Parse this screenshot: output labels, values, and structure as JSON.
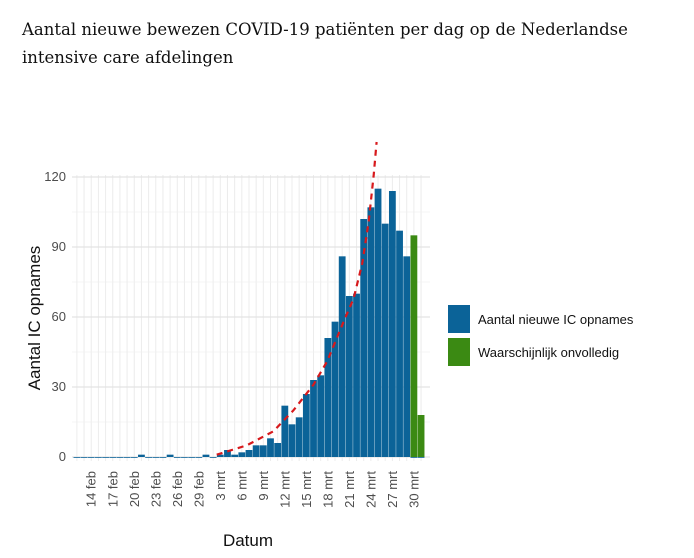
{
  "chart_data": {
    "type": "bar",
    "title": "Aantal nieuwe bewezen COVID-19 patiënten per dag op de Nederlandse intensive care afdelingen",
    "xlabel": "Datum",
    "ylabel": "Aantal IC opnames",
    "ylim": [
      0,
      120
    ],
    "yticks": [
      0,
      30,
      60,
      90,
      120
    ],
    "grid": true,
    "legend_position": "right",
    "first_date": "12 feb",
    "last_date": "31 mrt",
    "xtick_labels": [
      "14 feb",
      "17 feb",
      "20 feb",
      "23 feb",
      "26 feb",
      "29 feb",
      "3 mrt",
      "6 mrt",
      "9 mrt",
      "12 mrt",
      "15 mrt",
      "18 mrt",
      "21 mrt",
      "24 mrt",
      "27 mrt",
      "30 mrt"
    ],
    "xtick_day_index": [
      2,
      5,
      8,
      11,
      14,
      17,
      20,
      23,
      26,
      29,
      32,
      35,
      38,
      41,
      44,
      47
    ],
    "series": [
      {
        "name": "Aantal nieuwe IC opnames",
        "color": "#0b6398",
        "values": [
          0,
          0,
          0,
          0,
          0,
          0,
          0,
          0,
          0,
          1,
          0,
          0,
          0,
          1,
          0,
          0,
          0,
          0,
          1,
          0,
          1,
          3,
          1,
          2,
          3,
          5,
          5,
          8,
          6,
          22,
          14,
          17,
          27,
          33,
          35,
          51,
          58,
          86,
          69,
          70,
          102,
          107,
          115,
          100,
          114,
          97,
          86,
          0,
          0
        ]
      },
      {
        "name": "Waarschijnlijk onvolledig",
        "color": "#3b8a13",
        "values": [
          0,
          0,
          0,
          0,
          0,
          0,
          0,
          0,
          0,
          0,
          0,
          0,
          0,
          0,
          0,
          0,
          0,
          0,
          0,
          0,
          0,
          0,
          0,
          0,
          0,
          0,
          0,
          0,
          0,
          0,
          0,
          0,
          0,
          0,
          0,
          0,
          0,
          0,
          0,
          0,
          0,
          0,
          0,
          0,
          0,
          0,
          0,
          95,
          18
        ]
      }
    ],
    "trend": {
      "color": "#d7191c",
      "style": "dashed",
      "day_index": [
        19.5,
        23.7,
        27.4,
        30.2,
        33,
        34.9,
        37.2,
        38.6,
        39.8,
        40.7,
        41.4,
        41.8
      ],
      "values": [
        1,
        5,
        11,
        20,
        31,
        41,
        58,
        68,
        83,
        101,
        121,
        135
      ]
    }
  }
}
